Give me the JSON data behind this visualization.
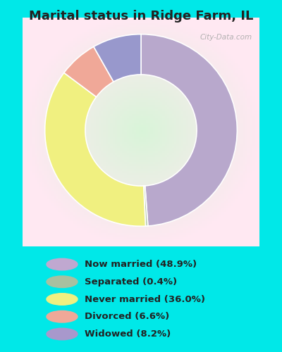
{
  "title": "Marital status in Ridge Farm, IL",
  "title_fontsize": 13,
  "values": [
    48.9,
    0.4,
    36.0,
    6.6,
    8.2
  ],
  "colors": [
    "#b8a8cc",
    "#b8ccb0",
    "#f0f080",
    "#f0a898",
    "#9898cc"
  ],
  "legend_labels": [
    "Now married (48.9%)",
    "Separated (0.4%)",
    "Never married (36.0%)",
    "Divorced (6.6%)",
    "Widowed (8.2%)"
  ],
  "legend_colors": [
    "#c0a8d0",
    "#a8c0a0",
    "#f0f080",
    "#f0a898",
    "#a898cc"
  ],
  "outer_bg": "#00e8e8",
  "chart_bg": "#d8eed8",
  "watermark": "City-Data.com",
  "start_angle": 90,
  "counterclock": false
}
